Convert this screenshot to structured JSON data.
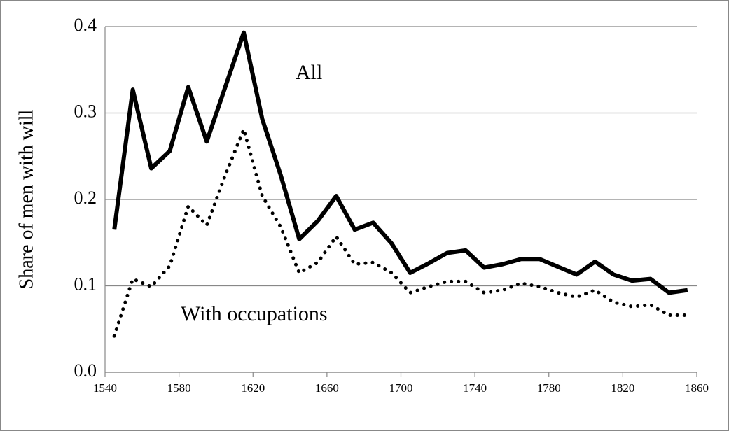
{
  "chart_data": {
    "type": "line",
    "y_label": "Share of men with will",
    "x": [
      1545,
      1555,
      1565,
      1575,
      1585,
      1595,
      1605,
      1615,
      1625,
      1635,
      1645,
      1655,
      1665,
      1675,
      1685,
      1695,
      1705,
      1715,
      1725,
      1735,
      1745,
      1755,
      1765,
      1775,
      1785,
      1795,
      1805,
      1815,
      1825,
      1835,
      1845,
      1855
    ],
    "series": [
      {
        "name": "All",
        "color": "#000000",
        "style": "solid",
        "values": [
          0.165,
          0.327,
          0.236,
          0.256,
          0.33,
          0.267,
          0.33,
          0.393,
          0.293,
          0.228,
          0.154,
          0.175,
          0.204,
          0.165,
          0.173,
          0.149,
          0.115,
          0.126,
          0.138,
          0.141,
          0.121,
          0.125,
          0.131,
          0.131,
          0.122,
          0.113,
          0.128,
          0.113,
          0.106,
          0.108,
          0.092,
          0.095
        ]
      },
      {
        "name": "With occupations",
        "color": "#000000",
        "style": "dotted",
        "values": [
          0.042,
          0.108,
          0.099,
          0.123,
          0.192,
          0.17,
          0.228,
          0.281,
          0.204,
          0.168,
          0.115,
          0.127,
          0.157,
          0.125,
          0.127,
          0.115,
          0.092,
          0.099,
          0.105,
          0.105,
          0.092,
          0.095,
          0.103,
          0.099,
          0.092,
          0.087,
          0.095,
          0.081,
          0.076,
          0.078,
          0.066,
          0.066
        ]
      }
    ],
    "xlim": [
      1540,
      1860
    ],
    "xticks": [
      1540,
      1580,
      1620,
      1660,
      1700,
      1740,
      1780,
      1820,
      1860
    ],
    "ylim": [
      0,
      0.4
    ],
    "yticks": [
      {
        "value": 0,
        "label": "0.0"
      },
      0.1,
      0.2,
      0.3,
      0.4
    ],
    "grid": true
  }
}
